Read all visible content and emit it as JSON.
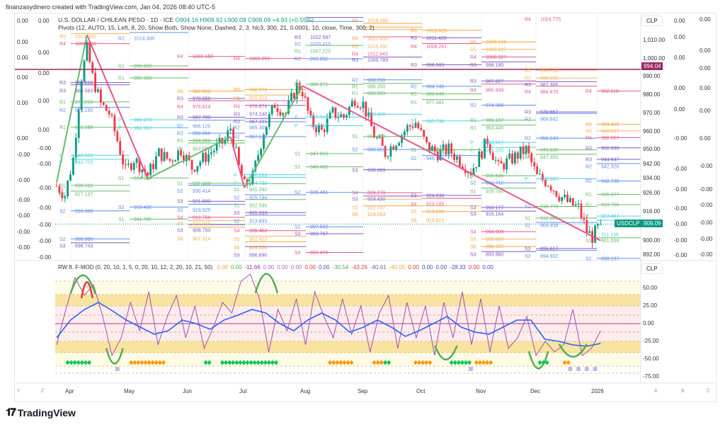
{
  "credit": "finanzasydinero created with TradingView.com, Jan 04, 2026 08:40 UTC-5",
  "symbol": {
    "title": "U.S. DOLLAR / CHILEAN PESO · 1D · ICE",
    "open": "O904.16",
    "high": "H909.92",
    "low": "L900.09",
    "close": "C909.09",
    "change": "+4.93 (+0.55%)"
  },
  "pivots_legend": "Pivots (12, AUTO, 15, Left, 8, 20, Show Both, Show None, Dashed, 2, 3, hlc3, 300, 21, 0.0001, 10, close, Time, 300, 2)",
  "indicator": {
    "title": "RW ft. F-MOD (0, 20, 10, 1, 5, 0, 20, 10, 12, 2, 20, 10, 21, 50)",
    "values": [
      {
        "v": "0.00",
        "c": "#f7a23b"
      },
      {
        "v": "0.00",
        "c": "#4caf50"
      },
      {
        "v": "-11.66",
        "c": "#9c27b0"
      },
      {
        "v": "0.00",
        "c": "#ba68c8"
      },
      {
        "v": "0.00",
        "c": "#ba68c8"
      },
      {
        "v": "0.00",
        "c": "#ba68c8"
      },
      {
        "v": "0.00",
        "c": "#e53935"
      },
      {
        "v": "0.00",
        "c": "#3f51b5"
      },
      {
        "v": "-30.54",
        "c": "#4caf50"
      },
      {
        "v": "-43.26",
        "c": "#e53935"
      },
      {
        "v": "-40.61",
        "c": "#7e57c2"
      },
      {
        "v": "-40.05",
        "c": "#f7a23b"
      },
      {
        "v": "0.00",
        "c": "#e53935"
      },
      {
        "v": "0.00",
        "c": "#3f51b5"
      },
      {
        "v": "0.00",
        "c": "#3f51b5"
      },
      {
        "v": "-28.33",
        "c": "#3f51b5"
      },
      {
        "v": "0.00",
        "c": "#e53935"
      },
      {
        "v": "0.00",
        "c": "#3f51b5"
      }
    ]
  },
  "price_axis": {
    "currency": "CLP",
    "ticks": [
      "1,010.00",
      "1,000.00",
      "990.00",
      "980.00",
      "970.00",
      "960.00",
      "950.00",
      "942.00",
      "934.00",
      "926.00",
      "916.00",
      "900.00",
      "892.00"
    ],
    "tick_values": [
      1010,
      1000,
      990,
      980,
      970,
      960,
      950,
      942,
      934,
      926,
      916,
      900,
      892
    ],
    "hline_label": "994.04",
    "hline_value": 994.04,
    "hline_color": "#9c2760",
    "last_symbol": "USDCLP",
    "last_price": "909.09",
    "last_value": 909.09,
    "last_color": "#089981"
  },
  "ind_axis": {
    "currency": "CLP",
    "ticks": [
      "50.00",
      "25.00",
      "0.00",
      "-25.00",
      "-50.00",
      "-75.00"
    ],
    "tick_values": [
      50,
      25,
      0,
      -25,
      -50,
      -75
    ]
  },
  "left_cols": [
    [
      "0.00",
      "0.00",
      "0.00",
      "0.00",
      "0.00",
      "0.00",
      "-0.00",
      "-0.00",
      "-0.00",
      "-0.00",
      "-0.00",
      "-0.00"
    ],
    [
      "0.00",
      "0.00",
      "0.00",
      "0.00",
      "0.00",
      "-0.00",
      "-0.00",
      "-0.00",
      "-0.00",
      "-0.00",
      "-0.00",
      "-0.00"
    ]
  ],
  "right_cols": [
    [
      "0.00",
      "0.00",
      "0.00",
      "0.00",
      "0.00",
      "-0.00",
      "-0.00",
      "-0.00",
      "-0.00",
      "-0.00",
      "-0.00",
      "-0.00"
    ],
    [
      "0.00",
      "0.00",
      "0.00",
      "0.00",
      "0.00",
      "0.00",
      "-0.00",
      "-0.00",
      "-0.00",
      "-0.00",
      "-0.00",
      "-0.00"
    ]
  ],
  "time_axis": [
    "Apr",
    "May",
    "Jun",
    "Jul",
    "Aug",
    "Sep",
    "Oct",
    "Nov",
    "Dec",
    "2026"
  ],
  "corner_left": [
    "Y",
    "Z"
  ],
  "corner_right": [
    "A",
    "B",
    "C"
  ],
  "brand": "TradingView",
  "colors": {
    "up": "#089981",
    "down": "#f23645",
    "R6": "#f7a23b",
    "R5": "#f0b35a",
    "R4": "#e8558a",
    "R3": "#7e57c2",
    "R2": "#5b8def",
    "R1": "#66bb6a",
    "P": "#4dd0e1",
    "zz_up": "#66bb6a",
    "zz_down": "#e8558a"
  },
  "chart_data": {
    "type": "candlestick",
    "price_keypoints": [
      [
        0,
        930
      ],
      [
        3,
        925
      ],
      [
        6,
        945
      ],
      [
        9,
        990
      ],
      [
        11,
        1005
      ],
      [
        13,
        990
      ],
      [
        16,
        975
      ],
      [
        19,
        970
      ],
      [
        22,
        955
      ],
      [
        25,
        938
      ],
      [
        28,
        945
      ],
      [
        33,
        936
      ],
      [
        37,
        948
      ],
      [
        41,
        944
      ],
      [
        45,
        950
      ],
      [
        49,
        940
      ],
      [
        53,
        945
      ],
      [
        57,
        950
      ],
      [
        61,
        955
      ],
      [
        63,
        962
      ],
      [
        66,
        940
      ],
      [
        68,
        930
      ],
      [
        71,
        935
      ],
      [
        75,
        960
      ],
      [
        79,
        975
      ],
      [
        83,
        970
      ],
      [
        87,
        985
      ],
      [
        89,
        982
      ],
      [
        92,
        965
      ],
      [
        96,
        960
      ],
      [
        100,
        970
      ],
      [
        104,
        968
      ],
      [
        108,
        978
      ],
      [
        111,
        975
      ],
      [
        115,
        958
      ],
      [
        119,
        948
      ],
      [
        123,
        955
      ],
      [
        127,
        962
      ],
      [
        130,
        965
      ],
      [
        134,
        952
      ],
      [
        138,
        948
      ],
      [
        142,
        950
      ],
      [
        146,
        944
      ],
      [
        150,
        938
      ],
      [
        153,
        946
      ],
      [
        156,
        955
      ],
      [
        160,
        940
      ],
      [
        165,
        945
      ],
      [
        170,
        950
      ],
      [
        174,
        935
      ],
      [
        178,
        932
      ],
      [
        182,
        925
      ],
      [
        186,
        920
      ],
      [
        189,
        918
      ],
      [
        192,
        905
      ],
      [
        194,
        902
      ],
      [
        197,
        909
      ]
    ],
    "zigzag": [
      [
        0,
        932
      ],
      [
        11,
        1013
      ],
      [
        33,
        934
      ],
      [
        63,
        957
      ],
      [
        68,
        929
      ],
      [
        89,
        985
      ],
      [
        197,
        900
      ]
    ],
    "pivots": [
      {
        "month": "Apr",
        "levels": [
          [
            "R5",
            1013.643
          ],
          [
            "R4",
            1008.22
          ],
          [
            "R3",
            986.815
          ],
          [
            "R3",
            985.563
          ],
          [
            "R1",
            976.22
          ],
          [
            "R2",
            973.16
          ],
          [
            "R1",
            962.26
          ],
          [
            "P",
            946.85
          ],
          [
            "P",
            944.703
          ],
          [
            "S1",
            930.31
          ],
          [
            "S1",
            927.147
          ],
          [
            "S2",
            916.3
          ],
          [
            "S2",
            900.89
          ],
          [
            "S3",
            898.743
          ]
        ]
      },
      {
        "month": "May",
        "levels": [
          [
            "R2",
            1014.308
          ],
          [
            "R1",
            996.002
          ],
          [
            "R1",
            989.355
          ],
          [
            "P",
            966.37
          ],
          [
            "P",
            961.967
          ],
          [
            "S1",
            934.368
          ],
          [
            "S2",
            918.432
          ],
          [
            "S1",
            911.785
          ]
        ]
      },
      {
        "month": "Jun",
        "levels": [
          [
            "R4",
            1001.15
          ],
          [
            "R6",
            982.066
          ],
          [
            "R3",
            978.05
          ],
          [
            "R4",
            976.814
          ],
          [
            "R3",
            967.79
          ],
          [
            "R2",
            966.125
          ],
          [
            "R2",
            958.966
          ],
          [
            "R1",
            954.95
          ],
          [
            "R1",
            953.579
          ],
          [
            "S1",
            931.45
          ],
          [
            "S2",
            930.414
          ],
          [
            "S3",
            921.59
          ],
          [
            "S2",
            919.925
          ],
          [
            "S4",
            912.766
          ],
          [
            "S5",
            910.949
          ],
          [
            "S3",
            908.75
          ],
          [
            "S6",
            907.314
          ]
        ]
      },
      {
        "month": "Jul",
        "levels": [
          [
            "R4",
            1000.05
          ],
          [
            "R6",
            982.972
          ],
          [
            "R5",
            979.923
          ],
          [
            "R4",
            976.874
          ],
          [
            "R3",
            974.24
          ],
          [
            "R3",
            967.101
          ],
          [
            "R2",
            965.309
          ],
          [
            "R2",
            957.132
          ],
          [
            "P",
            936.163
          ],
          [
            "P",
            934.733
          ],
          [
            "S1",
            931.292
          ],
          [
            "S2",
            925.194
          ],
          [
            "S1",
            922.53
          ],
          [
            "S3",
            915.333
          ],
          [
            "S2",
            913.893
          ],
          [
            "S4",
            905.452
          ],
          [
            "S5",
            902.403
          ],
          [
            "S6",
            899.354
          ],
          [
            "S3",
            896.69
          ]
        ]
      },
      {
        "month": "Aug",
        "levels": [
          [
            "R2",
            1020.415
          ],
          [
            "R3",
            1022.587
          ],
          [
            "R1",
            1007.225
          ],
          [
            "R2",
            999.892
          ],
          [
            "R1",
            985.871
          ],
          [
            "P",
            967.915
          ],
          [
            "P",
            963.117
          ],
          [
            "S1",
            947.815
          ],
          [
            "S1",
            940.482
          ],
          [
            "S2",
            926.461
          ],
          [
            "S2",
            907.592
          ],
          [
            "S3",
            903.767
          ],
          [
            "S4",
            893.47
          ]
        ]
      },
      {
        "month": "Sep",
        "levels": [
          [
            "R6",
            1019.35
          ],
          [
            "R6",
            1017.31
          ],
          [
            "R5",
            1015.997
          ],
          [
            "R4",
            1011.943
          ],
          [
            "R3",
            1000.789
          ],
          [
            "R2",
            988.29
          ],
          [
            "R1",
            986.35
          ],
          [
            "R1",
            980.983
          ],
          [
            "P",
            969.439
          ],
          [
            "S1",
            957.18
          ],
          [
            "S2",
            950.023
          ],
          [
            "S3",
            938.869
          ],
          [
            "S4",
            926.27
          ],
          [
            "S3",
            924.43
          ],
          [
            "S5",
            922.747
          ],
          [
            "S6",
            919.063
          ]
        ]
      },
      {
        "month": "Oct",
        "levels": [
          [
            "R6",
            1015.525
          ],
          [
            "R3",
            1011.42
          ],
          [
            "R4",
            1008.261
          ],
          [
            "R3",
            996.583
          ],
          [
            "R2",
            984.745
          ],
          [
            "R1",
            980.64
          ],
          [
            "R1",
            977.481
          ],
          [
            "P",
            965.738
          ],
          [
            "S1",
            949.86
          ],
          [
            "S2",
            946.701
          ],
          [
            "S3",
            924.838
          ],
          [
            "S4",
            923.185
          ],
          [
            "S5",
            919.08
          ],
          [
            "S6",
            915.921
          ]
        ]
      },
      {
        "month": "Nov",
        "levels": [
          [
            "R6",
            1009.126
          ],
          [
            "R5",
            1005.027
          ],
          [
            "R4",
            1000.927
          ],
          [
            "R3",
            998.18
          ],
          [
            "R3",
            987.657
          ],
          [
            "R4",
            985.949
          ],
          [
            "R2",
            974.386
          ],
          [
            "R1",
            966.187
          ],
          [
            "R1",
            963.44
          ],
          [
            "P",
            953.917
          ],
          [
            "P",
            951.205
          ],
          [
            "S1",
            935.646
          ],
          [
            "S2",
            931.712
          ],
          [
            "S1",
            928.76
          ],
          [
            "S3",
            918.177
          ],
          [
            "S3",
            916.164
          ],
          [
            "S4",
            904.906
          ],
          [
            "S5",
            900.807
          ],
          [
            "S6",
            896.707
          ],
          [
            "S3",
            893.96
          ]
        ]
      },
      {
        "month": "Dec",
        "levels": [
          [
            "R4",
            1024.775
          ],
          [
            "R6",
            993.713
          ],
          [
            "R5",
            989.292
          ],
          [
            "R3",
            987.305
          ],
          [
            "R4",
            984.87
          ],
          [
            "R3",
            970.657
          ],
          [
            "R2",
            969.842
          ],
          [
            "R2",
            956.243
          ],
          [
            "R1",
            949.835
          ],
          [
            "R1",
            947.4
          ],
          [
            "P",
            933.987
          ],
          [
            "S1",
            918.773
          ],
          [
            "S1",
            912.366
          ],
          [
            "S2",
            909.938
          ],
          [
            "S3",
            895.617
          ],
          [
            "S2",
            894.602
          ]
        ]
      },
      {
        "month": "2026",
        "levels": [
          [
            "R4",
            982.11
          ],
          [
            "R6",
            963.916
          ],
          [
            "R5",
            960.237
          ],
          [
            "R4",
            956.557
          ],
          [
            "R3",
            950.93
          ],
          [
            "R3",
            944.647
          ],
          [
            "R2",
            942.32
          ],
          [
            "R2",
            932.736
          ],
          [
            "R1",
            925.377
          ],
          [
            "R1",
            919.75
          ],
          [
            "P",
            913.467
          ],
          [
            "P",
            911.136
          ],
          [
            "S1",
            901.556
          ],
          [
            "S2",
            890.197
          ]
        ]
      }
    ],
    "osc_blue": [
      -20,
      5,
      20,
      30,
      18,
      5,
      -5,
      -15,
      -10,
      5,
      0,
      -8,
      5,
      12,
      20,
      15,
      0,
      -10,
      5,
      15,
      5,
      -12,
      -5,
      5,
      -5,
      -18,
      -10,
      0,
      10,
      -5,
      -12,
      -15,
      -5,
      5,
      5,
      -22,
      -25,
      -30,
      -32,
      -28
    ],
    "osc_purple": [
      -30,
      20,
      65,
      40,
      55,
      10,
      -45,
      -20,
      30,
      -10,
      45,
      -30,
      10,
      40,
      -20,
      25,
      -35,
      -5,
      30,
      15,
      60,
      70,
      35,
      -40,
      20,
      -10,
      35,
      -30,
      45,
      10,
      -20,
      35,
      -15,
      25,
      -40,
      15,
      40,
      -35,
      30,
      -20,
      25,
      -45,
      30,
      -20,
      45,
      -30,
      35,
      -40,
      25,
      -35,
      -20,
      10,
      -45,
      -25,
      -40,
      -30,
      20,
      -45,
      -35,
      -10
    ],
    "thick_arcs": [
      [
        5,
        14,
        70,
        "#4caf50"
      ],
      [
        9,
        13,
        60,
        "#e53935"
      ],
      [
        18,
        24,
        -58,
        "#4caf50"
      ],
      [
        72,
        80,
        72,
        "#4caf50"
      ],
      [
        137,
        145,
        -52,
        "#4caf50"
      ],
      [
        171,
        178,
        -65,
        "#4caf50"
      ],
      [
        182,
        192,
        -48,
        "#4caf50"
      ]
    ],
    "diamonds": [
      [
        4,
        12,
        "#00c853"
      ],
      [
        27,
        39,
        "#ff9800"
      ],
      [
        54,
        56,
        "#00c853"
      ],
      [
        60,
        80,
        "#00c853"
      ],
      [
        99,
        108,
        "#ff9800"
      ],
      [
        115,
        118,
        "#ff9800"
      ],
      [
        119,
        121,
        "#00c853"
      ],
      [
        130,
        136,
        "#ff9800"
      ],
      [
        143,
        150,
        "#00c853"
      ],
      [
        152,
        158,
        "#ff9800"
      ],
      [
        175,
        178,
        "#00c853"
      ],
      [
        184,
        186,
        "#ff9800"
      ]
    ],
    "squares": [
      22,
      150,
      186,
      189,
      192,
      195
    ],
    "ylim_price": [
      889,
      1030
    ],
    "ylim_osc": [
      -80,
      80
    ]
  }
}
